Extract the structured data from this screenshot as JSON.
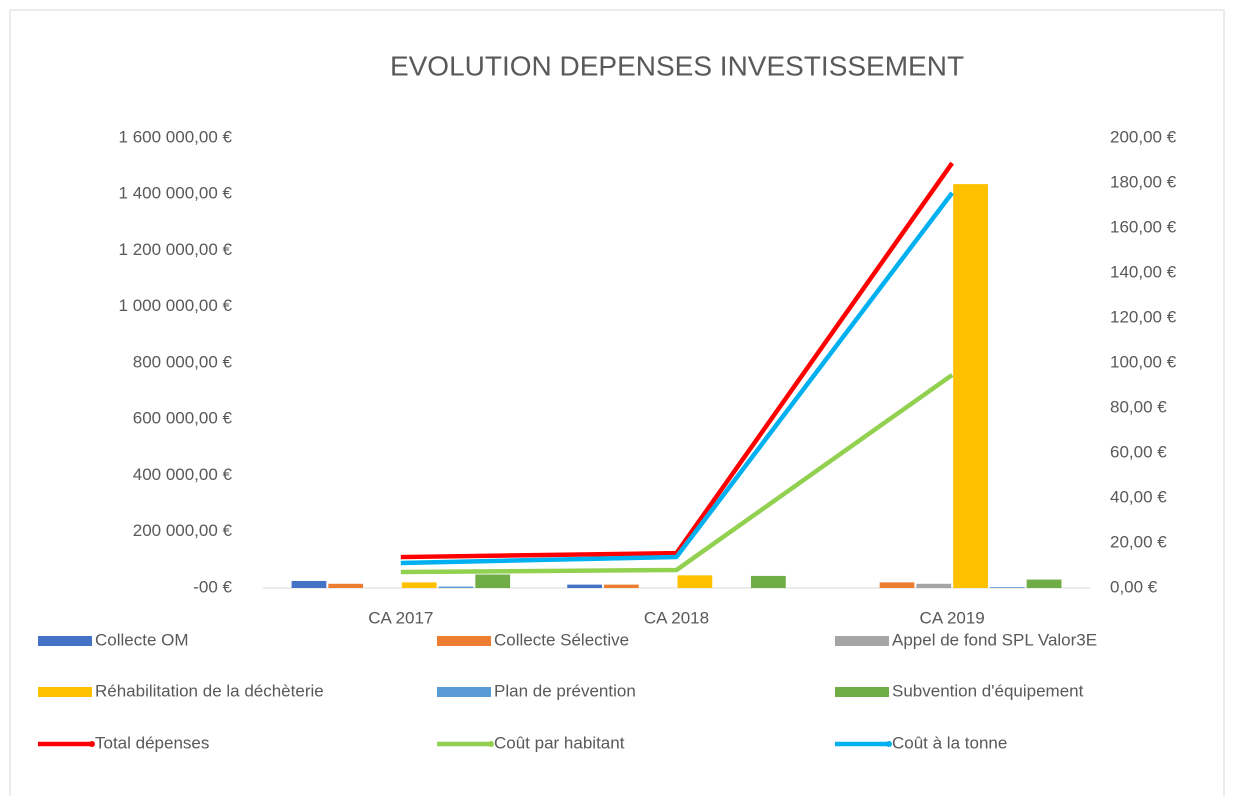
{
  "chart_data": {
    "type": "bar",
    "title": "EVOLUTION DEPENSES INVESTISSEMENT",
    "categories": [
      "CA 2017",
      "CA 2018",
      "CA 2019"
    ],
    "ylim": [
      0,
      1600000
    ],
    "yticks": [
      {
        "value": 0,
        "label": "-00 €"
      },
      {
        "value": 200000,
        "label": "200 000,00 €"
      },
      {
        "value": 400000,
        "label": "400 000,00 €"
      },
      {
        "value": 600000,
        "label": "600 000,00 €"
      },
      {
        "value": 800000,
        "label": "800 000,00 €"
      },
      {
        "value": 1000000,
        "label": "1 000 000,00 €"
      },
      {
        "value": 1200000,
        "label": "1 200 000,00 €"
      },
      {
        "value": 1400000,
        "label": "1 400 000,00 €"
      },
      {
        "value": 1600000,
        "label": "1 600 000,00 €"
      }
    ],
    "y2lim": [
      0,
      200
    ],
    "y2ticks": [
      {
        "value": 0,
        "label": "0,00 €"
      },
      {
        "value": 20,
        "label": "20,00 €"
      },
      {
        "value": 40,
        "label": "40,00 €"
      },
      {
        "value": 60,
        "label": "60,00 €"
      },
      {
        "value": 80,
        "label": "80,00 €"
      },
      {
        "value": 100,
        "label": "100,00 €"
      },
      {
        "value": 120,
        "label": "120,00 €"
      },
      {
        "value": 140,
        "label": "140,00 €"
      },
      {
        "value": 160,
        "label": "160,00 €"
      },
      {
        "value": 180,
        "label": "180,00 €"
      },
      {
        "value": 200,
        "label": "200,00 €"
      }
    ],
    "legend": "bottom",
    "series": [
      {
        "name": "Collecte OM",
        "type": "bar",
        "color": "#4472c4",
        "values": [
          25000,
          12000,
          0
        ]
      },
      {
        "name": "Collecte Sélective",
        "type": "bar",
        "color": "#ed7d31",
        "values": [
          15000,
          12000,
          20000
        ]
      },
      {
        "name": "Appel de fond SPL Valor3E",
        "type": "bar",
        "color": "#a5a5a5",
        "values": [
          0,
          0,
          15000
        ]
      },
      {
        "name": "Réhabilitation de la déchèterie",
        "type": "bar",
        "color": "#ffc000",
        "values": [
          20000,
          45000,
          1436000
        ]
      },
      {
        "name": "Plan de prévention",
        "type": "bar",
        "color": "#5b9bd5",
        "values": [
          5000,
          0,
          3000
        ]
      },
      {
        "name": "Subvention d'équipement",
        "type": "bar",
        "color": "#70ad47",
        "values": [
          48000,
          43000,
          30000
        ]
      },
      {
        "name": "Total dépenses",
        "type": "line",
        "color": "#ff0000",
        "values": [
          110000,
          124000,
          1511000
        ]
      },
      {
        "name": "Coût par habitant",
        "type": "line",
        "axis": "y2",
        "color": "#92d050",
        "values": [
          7.1,
          8.0,
          94.7
        ]
      },
      {
        "name": "Coût à la tonne",
        "type": "line",
        "axis": "y2",
        "color": "#00b0f0",
        "values": [
          11.1,
          13.8,
          175.6
        ]
      }
    ]
  }
}
